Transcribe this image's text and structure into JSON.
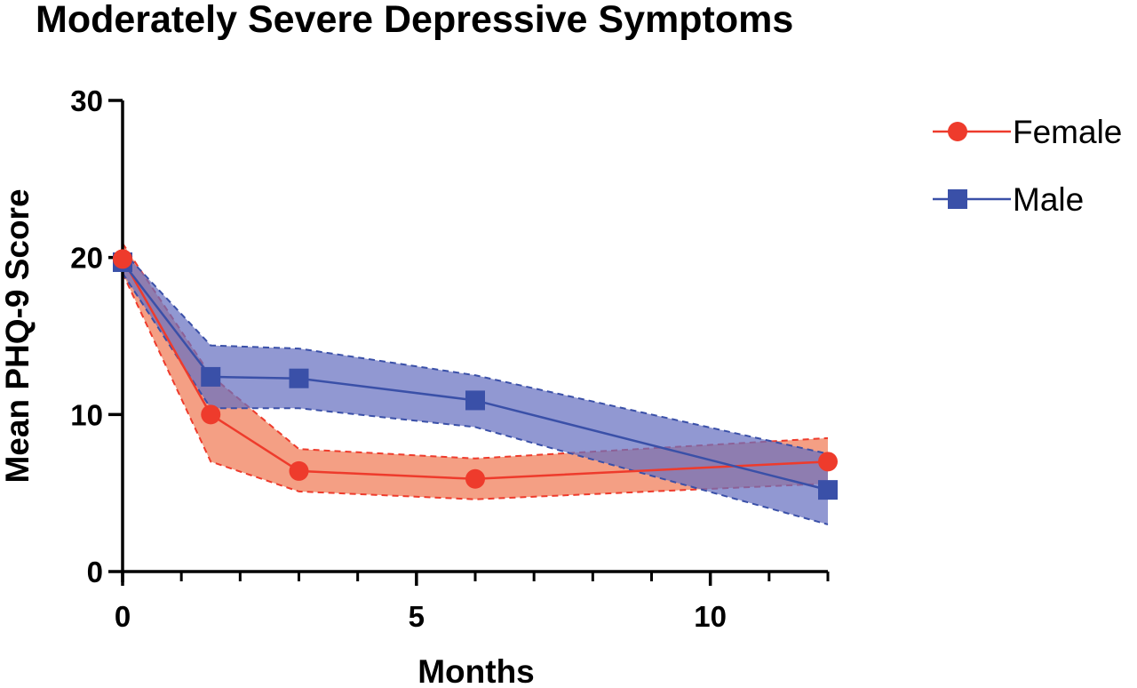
{
  "chart_data": {
    "type": "line",
    "title": "Moderately Severe Depressive Symptoms",
    "xlabel": "Months",
    "ylabel": "Mean PHQ-9 Score",
    "xlim": [
      0,
      12
    ],
    "ylim": [
      0,
      30
    ],
    "x_ticks": [
      0,
      5,
      10
    ],
    "x_minor_ticks": [
      1,
      2,
      3,
      4,
      6,
      7,
      8,
      9,
      11,
      12
    ],
    "y_ticks": [
      0,
      10,
      20,
      30
    ],
    "grid": false,
    "legend_position": "top-right",
    "x": [
      0,
      1.5,
      3,
      6,
      12
    ],
    "series": [
      {
        "name": "Female",
        "marker": "circle",
        "color": "#ee3b2c",
        "band_color": "#f07a55",
        "values": [
          19.9,
          10.0,
          6.4,
          5.9,
          7.0
        ],
        "ci_upper": [
          20.9,
          12.5,
          7.8,
          7.2,
          8.5
        ],
        "ci_lower": [
          19.0,
          7.0,
          5.1,
          4.6,
          5.6
        ]
      },
      {
        "name": "Male",
        "marker": "square",
        "color": "#3a50a8",
        "band_color": "#6670c0",
        "values": [
          19.7,
          12.4,
          12.3,
          10.9,
          5.2
        ],
        "ci_upper": [
          20.4,
          14.4,
          14.2,
          12.5,
          7.5
        ],
        "ci_lower": [
          19.0,
          10.4,
          10.4,
          9.2,
          3.0
        ]
      }
    ]
  }
}
